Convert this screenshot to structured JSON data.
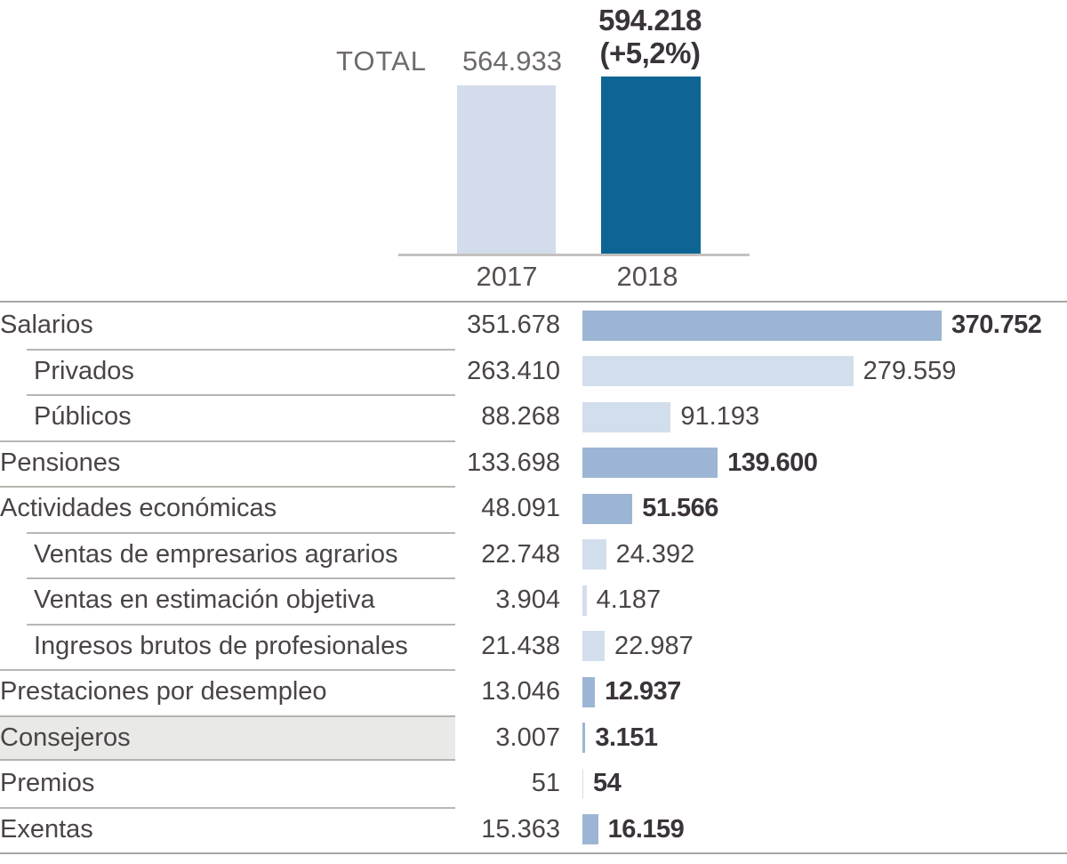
{
  "colors": {
    "dark_blue_2018": "#0E6593",
    "medium_blue_bar": "#9DB5D4",
    "light_blue_bar": "#D3DEED",
    "highlight_row_bg": "#E9E9E7",
    "separator_gray": "#B9B5B2"
  },
  "top_chart": {
    "total_label": "TOTAL",
    "value_2017_label": "564.933",
    "value_2018_label": "594.218",
    "pct_change_label": "(+5,2%)",
    "value_2017": 564933,
    "value_2018": 594218,
    "year_labels": [
      "2017",
      "2018"
    ]
  },
  "table": {
    "rows": [
      {
        "label": "Salarios",
        "y2017": "351.678",
        "y2018": "370.752",
        "v2018": 370752,
        "level": 0,
        "bold": true
      },
      {
        "label": "Privados",
        "y2017": "263.410",
        "y2018": "279.559",
        "v2018": 279559,
        "level": 1,
        "bold": false
      },
      {
        "label": "Públicos",
        "y2017": "88.268",
        "y2018": "91.193",
        "v2018": 91193,
        "level": 1,
        "bold": false
      },
      {
        "label": "Pensiones",
        "y2017": "133.698",
        "y2018": "139.600",
        "v2018": 139600,
        "level": 0,
        "bold": true
      },
      {
        "label": "Actividades económicas",
        "y2017": "48.091",
        "y2018": "51.566",
        "v2018": 51566,
        "level": 0,
        "bold": true
      },
      {
        "label": "Ventas de empresarios agrarios",
        "y2017": "22.748",
        "y2018": "24.392",
        "v2018": 24392,
        "level": 1,
        "bold": false
      },
      {
        "label": "Ventas en estimación objetiva",
        "y2017": "3.904",
        "y2018": "4.187",
        "v2018": 4187,
        "level": 1,
        "bold": false
      },
      {
        "label": "Ingresos brutos de profesionales",
        "y2017": "21.438",
        "y2018": "22.987",
        "v2018": 22987,
        "level": 1,
        "bold": false
      },
      {
        "label": "Prestaciones por desempleo",
        "y2017": "13.046",
        "y2018": "12.937",
        "v2018": 12937,
        "level": 0,
        "bold": true
      },
      {
        "label": "Consejeros",
        "y2017": "3.007",
        "y2018": "3.151",
        "v2018": 3151,
        "level": 0,
        "bold": true,
        "highlighted": true
      },
      {
        "label": "Premios",
        "y2017": "51",
        "y2018": "54",
        "v2018": 54,
        "level": 0,
        "bold": true
      },
      {
        "label": "Exentas",
        "y2017": "15.363",
        "y2018": "16.159",
        "v2018": 16159,
        "level": 0,
        "bold": true
      }
    ]
  },
  "chart_data": [
    {
      "type": "bar",
      "title": "TOTAL",
      "categories": [
        "2017",
        "2018"
      ],
      "values": [
        564933,
        594218
      ],
      "data_labels": [
        "564.933",
        "594.218 (+5,2%)"
      ],
      "colors": [
        "#D3DCEA",
        "#0E6593"
      ],
      "xlabel": "",
      "ylabel": "",
      "grid": false,
      "legend": false
    },
    {
      "type": "bar",
      "orientation": "horizontal",
      "categories": [
        "Salarios",
        "Privados",
        "Públicos",
        "Pensiones",
        "Actividades económicas",
        "Ventas de empresarios agrarios",
        "Ventas en estimación objetiva",
        "Ingresos brutos de profesionales",
        "Prestaciones por desempleo",
        "Consejeros",
        "Premios",
        "Exentas"
      ],
      "series": [
        {
          "name": "2017",
          "values": [
            351678,
            263410,
            88268,
            133698,
            48091,
            22748,
            3904,
            21438,
            13046,
            3007,
            51,
            15363
          ]
        },
        {
          "name": "2018",
          "values": [
            370752,
            279559,
            91193,
            139600,
            51566,
            24392,
            4187,
            22987,
            12937,
            3151,
            54,
            16159
          ]
        }
      ],
      "notes": "2017 values shown as numeric column; 2018 values drawn as horizontal bars with data labels. Top-level categories use medium blue bars and bold labels; sub-categories use light blue bars.",
      "highlighted_category": "Consejeros",
      "xlim": [
        0,
        370752
      ],
      "grid": false,
      "legend": false
    }
  ]
}
